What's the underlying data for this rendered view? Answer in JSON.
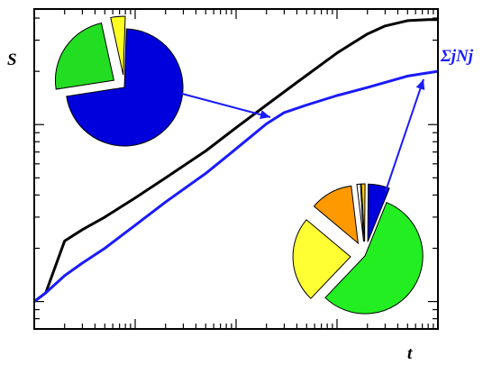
{
  "chart_data": {
    "type": "line",
    "xlabel": "t",
    "ylabel": "S",
    "xscale": "log",
    "yscale": "log",
    "grid": false,
    "legend": "none",
    "series": [
      {
        "color": "#000000",
        "x": [
          1,
          1.3,
          2,
          3,
          5,
          10,
          20,
          50,
          100,
          200,
          400,
          1000,
          2000,
          3000,
          5000,
          8000,
          10000
        ],
        "y": [
          1,
          1.12,
          2.2,
          2.55,
          3.0,
          3.85,
          5.0,
          7.1,
          9.6,
          12.9,
          17.3,
          25.4,
          32.5,
          36.1,
          38.7,
          39.2,
          39.2
        ]
      },
      {
        "name": "ΣjNj",
        "color": "#1a1aff",
        "x": [
          1,
          1.3,
          2,
          3,
          5,
          10,
          20,
          50,
          100,
          200,
          300,
          500,
          1000,
          2000,
          5000,
          10000
        ],
        "y": [
          1,
          1.12,
          1.4,
          1.65,
          2.0,
          2.7,
          3.65,
          5.3,
          7.3,
          10.1,
          11.7,
          12.9,
          14.6,
          16.2,
          18.8,
          20.0
        ]
      }
    ],
    "annotations": {
      "pie_top_left": {
        "points_to_series": "black",
        "slices": [
          {
            "color": "#0000dd",
            "share": 0.72,
            "exploded": false
          },
          {
            "color": "#22dd22",
            "share": 0.24,
            "exploded": true
          },
          {
            "color": "#ffff22",
            "share": 0.04,
            "exploded": true
          }
        ]
      },
      "pie_bottom_right": {
        "points_to_series": "blue",
        "slices": [
          {
            "color": "#22ee22",
            "share": 0.56,
            "exploded": false
          },
          {
            "color": "#ffff33",
            "share": 0.24,
            "exploded": true
          },
          {
            "color": "#ff9900",
            "share": 0.12,
            "exploded": true
          },
          {
            "color": "#ffffff",
            "share": 0.01,
            "exploded": true
          },
          {
            "color": "#ffcc00",
            "share": 0.01,
            "exploded": true
          },
          {
            "color": "#0000dd",
            "share": 0.06,
            "exploded": true
          }
        ]
      }
    },
    "colors": {
      "axis": "#000000",
      "arrow": "#1a1aff",
      "label_blue": "#1a1aff"
    }
  }
}
